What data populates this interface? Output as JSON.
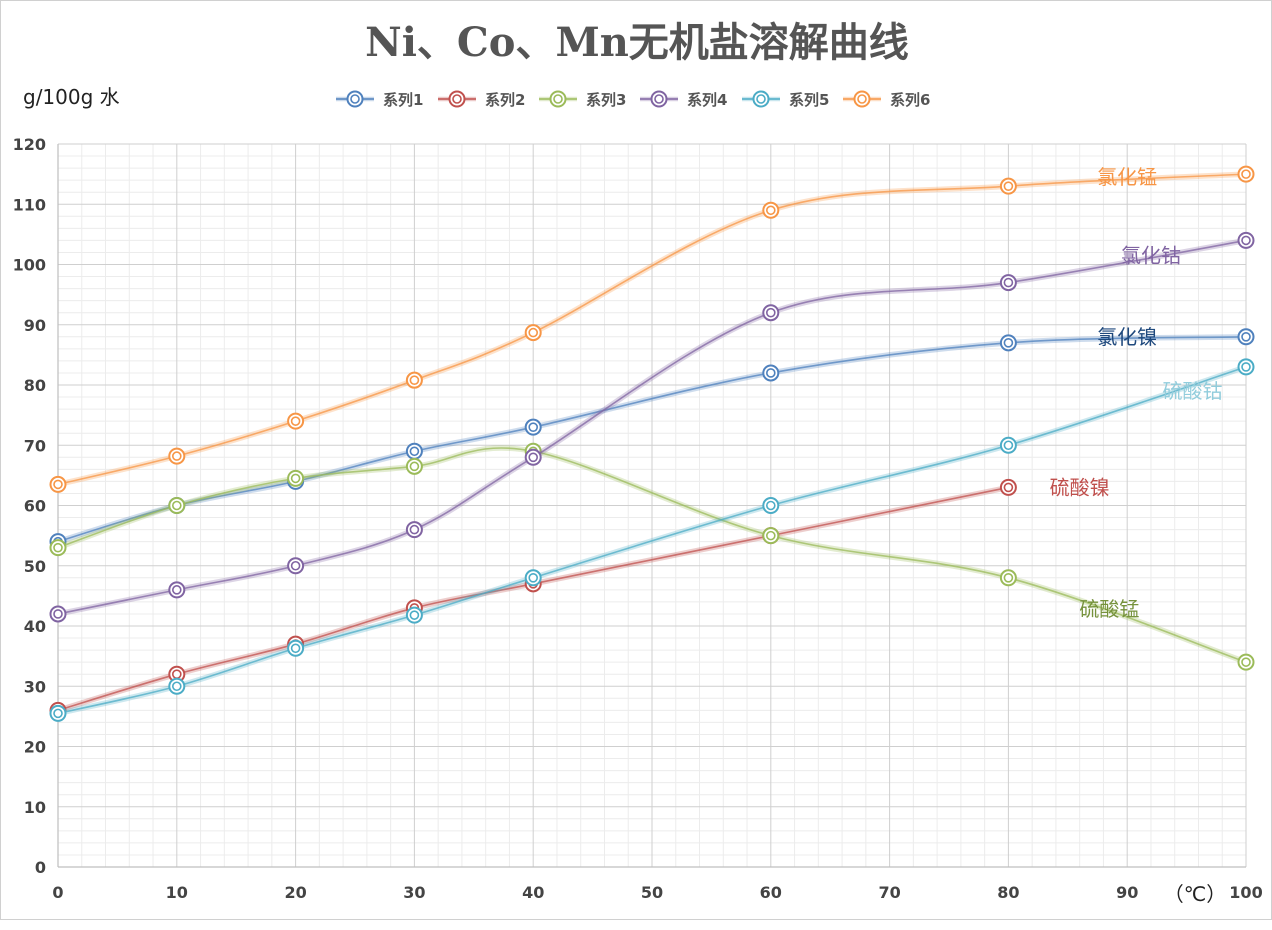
{
  "chart_data": {
    "type": "line",
    "title": "Ni、Co、Mn无机盐溶解曲线",
    "ylabel": "g/100g 水",
    "xlabel": "（℃）",
    "xlim": [
      0,
      100
    ],
    "ylim": [
      0,
      120
    ],
    "x_ticks": [
      0,
      10,
      20,
      30,
      40,
      50,
      60,
      70,
      80,
      90,
      100
    ],
    "y_ticks": [
      0,
      10,
      20,
      30,
      40,
      50,
      60,
      70,
      80,
      90,
      100,
      110,
      120
    ],
    "grid": true,
    "legend_position": "top",
    "smooth": true,
    "series": [
      {
        "name": "系列1",
        "color": "#4f81bd",
        "annotation": "氯化镍",
        "points": [
          [
            0,
            54
          ],
          [
            10,
            60
          ],
          [
            20,
            64
          ],
          [
            30,
            69
          ],
          [
            40,
            73
          ],
          [
            60,
            82
          ],
          [
            80,
            87
          ],
          [
            100,
            88
          ]
        ]
      },
      {
        "name": "系列2",
        "color": "#c0504d",
        "annotation": "硫酸镍",
        "points": [
          [
            0,
            26
          ],
          [
            10,
            32
          ],
          [
            20,
            37
          ],
          [
            30,
            43
          ],
          [
            40,
            47
          ],
          [
            60,
            55
          ],
          [
            80,
            63
          ]
        ]
      },
      {
        "name": "系列3",
        "color": "#9bbb59",
        "annotation": "硫酸锰",
        "points": [
          [
            0,
            53
          ],
          [
            10,
            60
          ],
          [
            20,
            64.5
          ],
          [
            30,
            66.5
          ],
          [
            40,
            69
          ],
          [
            60,
            55
          ],
          [
            80,
            48
          ],
          [
            100,
            34
          ]
        ]
      },
      {
        "name": "系列4",
        "color": "#8064a2",
        "annotation": "氯化钴",
        "points": [
          [
            0,
            42
          ],
          [
            10,
            46
          ],
          [
            20,
            50
          ],
          [
            30,
            56
          ],
          [
            40,
            68
          ],
          [
            60,
            92
          ],
          [
            80,
            97
          ],
          [
            100,
            104
          ]
        ]
      },
      {
        "name": "系列5",
        "color": "#4bacc6",
        "annotation": "硫酸钴",
        "points": [
          [
            0,
            25.5
          ],
          [
            10,
            30
          ],
          [
            20,
            36.3
          ],
          [
            30,
            41.8
          ],
          [
            40,
            48
          ],
          [
            60,
            60
          ],
          [
            80,
            70
          ],
          [
            100,
            83
          ]
        ]
      },
      {
        "name": "系列6",
        "color": "#f79646",
        "annotation": "氯化锰",
        "points": [
          [
            0,
            63.5
          ],
          [
            10,
            68.2
          ],
          [
            20,
            74
          ],
          [
            30,
            80.8
          ],
          [
            40,
            88.7
          ],
          [
            60,
            109
          ],
          [
            80,
            113
          ],
          [
            100,
            115
          ]
        ]
      }
    ],
    "annotations": [
      {
        "text": "氯化锰",
        "x": 90,
        "y": 114.5,
        "color": "#f79646"
      },
      {
        "text": "氯化钴",
        "x": 92,
        "y": 101.5,
        "color": "#8064a2"
      },
      {
        "text": "氯化镍",
        "x": 90,
        "y": 88,
        "color": "#1f497d"
      },
      {
        "text": "硫酸钴",
        "x": 95.5,
        "y": 79,
        "color": "#92cddc"
      },
      {
        "text": "硫酸镍",
        "x": 86,
        "y": 63,
        "color": "#c0504d"
      },
      {
        "text": "硫酸锰",
        "x": 88.5,
        "y": 42.8,
        "color": "#76923c"
      }
    ]
  }
}
